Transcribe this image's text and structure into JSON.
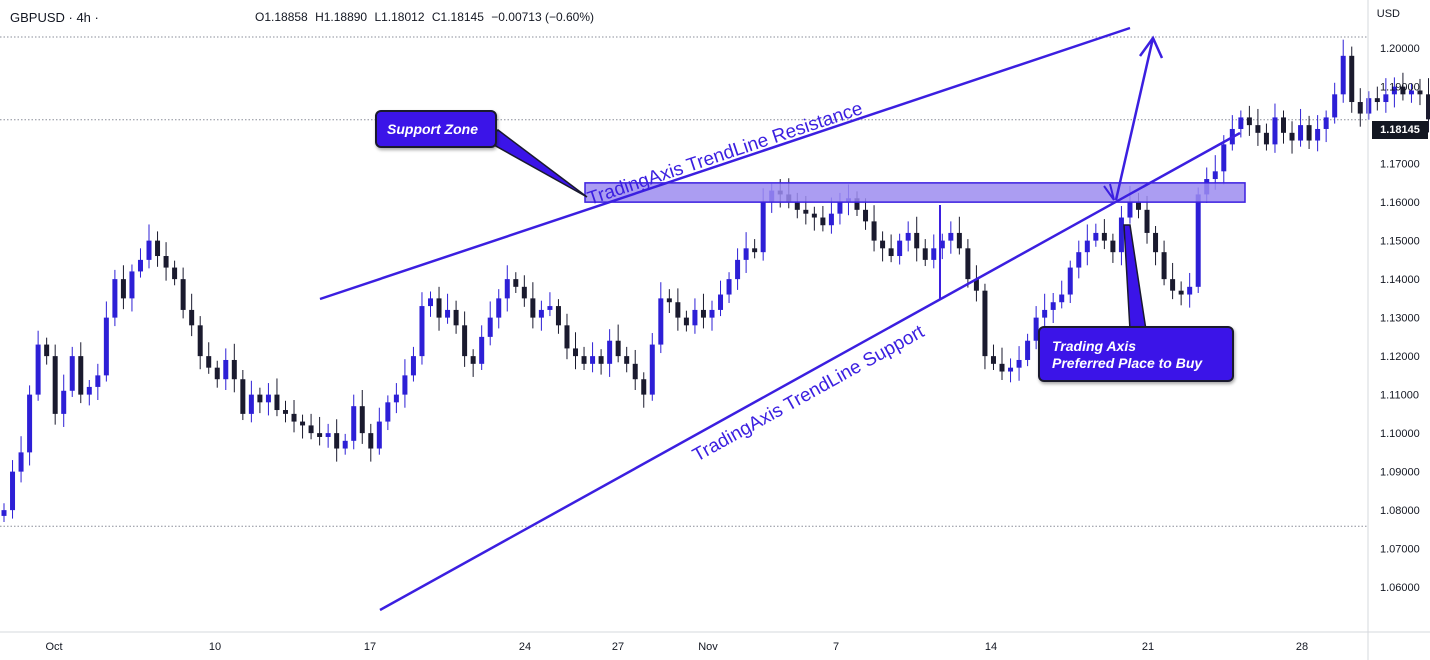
{
  "header": {
    "symbol": "GBPUSD · 4h ·",
    "ohlc": {
      "o": "O1.18858",
      "h": "H1.18890",
      "l": "L1.18012",
      "c": "C1.18145",
      "change": "−0.00713 (−0.60%)"
    }
  },
  "price_axis": {
    "currency": "USD",
    "last_price": "1.18145",
    "ticks": [
      "1.20000",
      "1.19000",
      "1.18000",
      "1.17000",
      "1.16000",
      "1.15000",
      "1.14000",
      "1.13000",
      "1.12000",
      "1.11000",
      "1.10000",
      "1.09000",
      "1.08000",
      "1.07000",
      "1.06000"
    ]
  },
  "time_axis": {
    "ticks": [
      "Oct",
      "10",
      "17",
      "24",
      "27",
      "Nov",
      "7",
      "14",
      "21",
      "28"
    ]
  },
  "annotations": {
    "resistance_label": "TradingAxis TrendLine Resistance",
    "support_label": "TradingAxis TrendLine Support",
    "support_zone_label": "Support Zone",
    "buy_label": "Trading Axis\nPreferred Place to Buy"
  },
  "colors": {
    "bull": "#2d1fd6",
    "bear": "#1a1a2e",
    "trendline": "#3b1fe0",
    "zone_fill": "#9c8cf0",
    "callout_bg": "#3b14e8"
  },
  "chart_data": {
    "type": "candlestick",
    "symbol": "GBPUSD",
    "timeframe": "4h",
    "x_ticks": [
      "Oct",
      "10",
      "17",
      "24",
      "27",
      "Nov",
      "7",
      "14",
      "21",
      "28"
    ],
    "ylim": [
      1.0525,
      1.2125
    ],
    "y_ticks": [
      1.2,
      1.19,
      1.18,
      1.17,
      1.16,
      1.15,
      1.14,
      1.13,
      1.12,
      1.11,
      1.1,
      1.09,
      1.08,
      1.07,
      1.06
    ],
    "horizontal_lines": [
      1.2029,
      1.1814,
      1.0758
    ],
    "support_zone": {
      "from": 1.16,
      "to": 1.165
    },
    "resistance_trendline": [
      [
        30,
        1.1374
      ],
      [
        107,
        1.2029
      ]
    ],
    "support_trendline": [
      [
        36,
        1.0564
      ],
      [
        119,
        1.1803
      ]
    ],
    "closes": [
      1.08,
      1.09,
      1.095,
      1.11,
      1.123,
      1.12,
      1.105,
      1.111,
      1.12,
      1.11,
      1.112,
      1.115,
      1.13,
      1.14,
      1.135,
      1.142,
      1.145,
      1.15,
      1.146,
      1.143,
      1.14,
      1.132,
      1.128,
      1.12,
      1.117,
      1.114,
      1.119,
      1.114,
      1.105,
      1.11,
      1.108,
      1.11,
      1.106,
      1.105,
      1.103,
      1.102,
      1.1,
      1.099,
      1.1,
      1.096,
      1.098,
      1.107,
      1.1,
      1.096,
      1.103,
      1.108,
      1.11,
      1.115,
      1.12,
      1.133,
      1.135,
      1.13,
      1.132,
      1.128,
      1.12,
      1.118,
      1.125,
      1.13,
      1.135,
      1.14,
      1.138,
      1.135,
      1.13,
      1.132,
      1.133,
      1.128,
      1.122,
      1.12,
      1.118,
      1.12,
      1.118,
      1.124,
      1.12,
      1.118,
      1.114,
      1.11,
      1.123,
      1.135,
      1.134,
      1.13,
      1.128,
      1.132,
      1.13,
      1.132,
      1.136,
      1.14,
      1.145,
      1.148,
      1.147,
      1.16,
      1.163,
      1.162,
      1.16,
      1.158,
      1.157,
      1.156,
      1.154,
      1.157,
      1.16,
      1.161,
      1.158,
      1.155,
      1.15,
      1.148,
      1.146,
      1.15,
      1.152,
      1.148,
      1.145,
      1.148,
      1.15,
      1.152,
      1.148,
      1.14,
      1.137,
      1.12,
      1.118,
      1.116,
      1.117,
      1.119,
      1.124,
      1.13,
      1.132,
      1.134,
      1.136,
      1.143,
      1.147,
      1.15,
      1.152,
      1.15,
      1.147,
      1.156,
      1.16,
      1.158,
      1.152,
      1.147,
      1.14,
      1.137,
      1.136,
      1.138,
      1.162,
      1.166,
      1.168,
      1.175,
      1.179,
      1.182,
      1.18,
      1.178,
      1.175,
      1.182,
      1.178,
      1.176,
      1.18,
      1.176,
      1.179,
      1.182,
      1.188,
      1.198,
      1.186,
      1.183,
      1.187,
      1.186,
      1.188,
      1.19,
      1.188,
      1.189,
      1.188,
      1.1815
    ]
  }
}
